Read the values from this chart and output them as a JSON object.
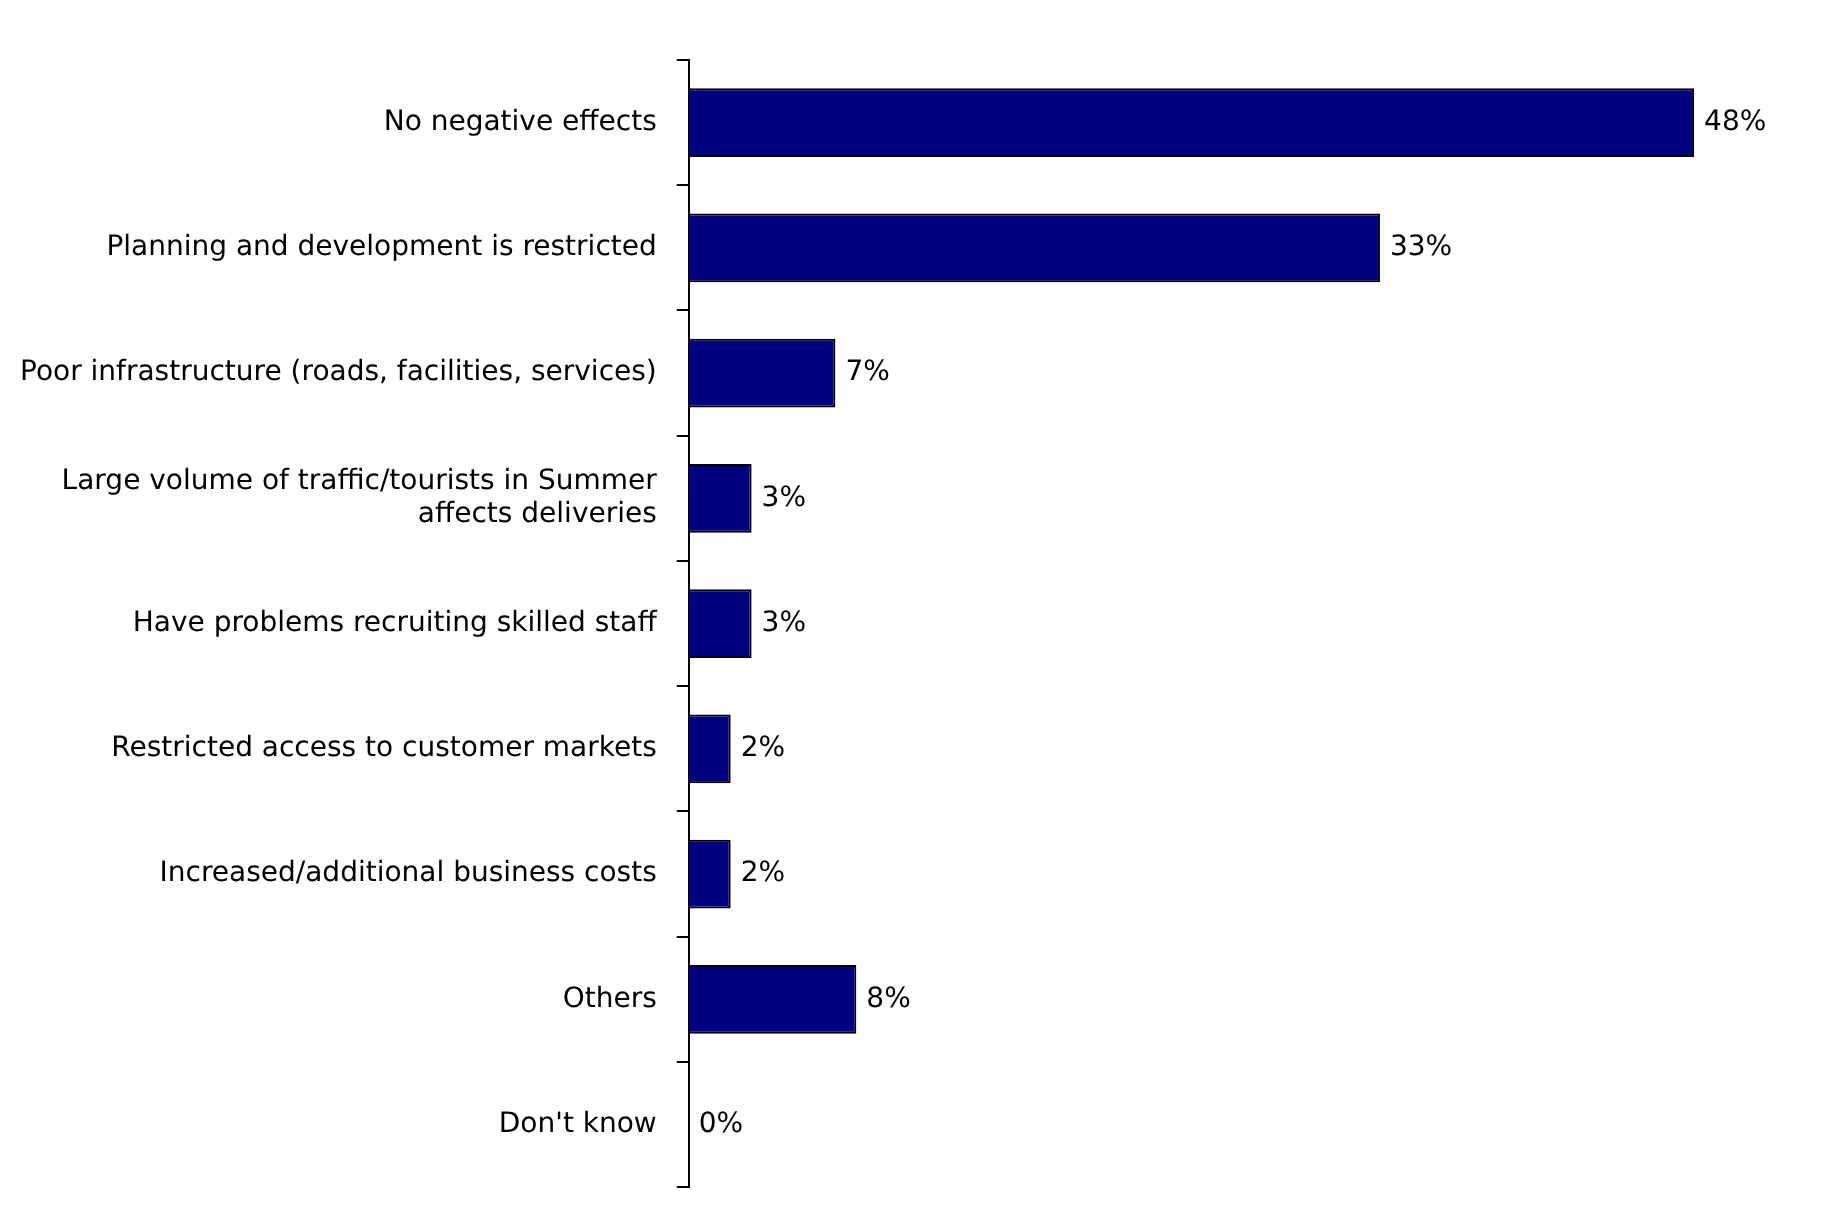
{
  "chart_data": {
    "type": "bar",
    "orientation": "horizontal",
    "categories": [
      "No negative effects",
      "Planning and development is restricted",
      "Poor infrastructure (roads, facilities, services)",
      "Large volume of traffic/tourists in Summer affects deliveries",
      "Have problems recruiting skilled staff",
      "Restricted access to customer markets",
      "Increased/additional business costs",
      "Others",
      "Don't know"
    ],
    "values": [
      48,
      33,
      7,
      3,
      3,
      2,
      2,
      8,
      0
    ],
    "value_labels": [
      "48%",
      "33%",
      "7%",
      "3%",
      "3%",
      "2%",
      "2%",
      "8%",
      "0%"
    ],
    "color": "#000080",
    "legend": false
  }
}
